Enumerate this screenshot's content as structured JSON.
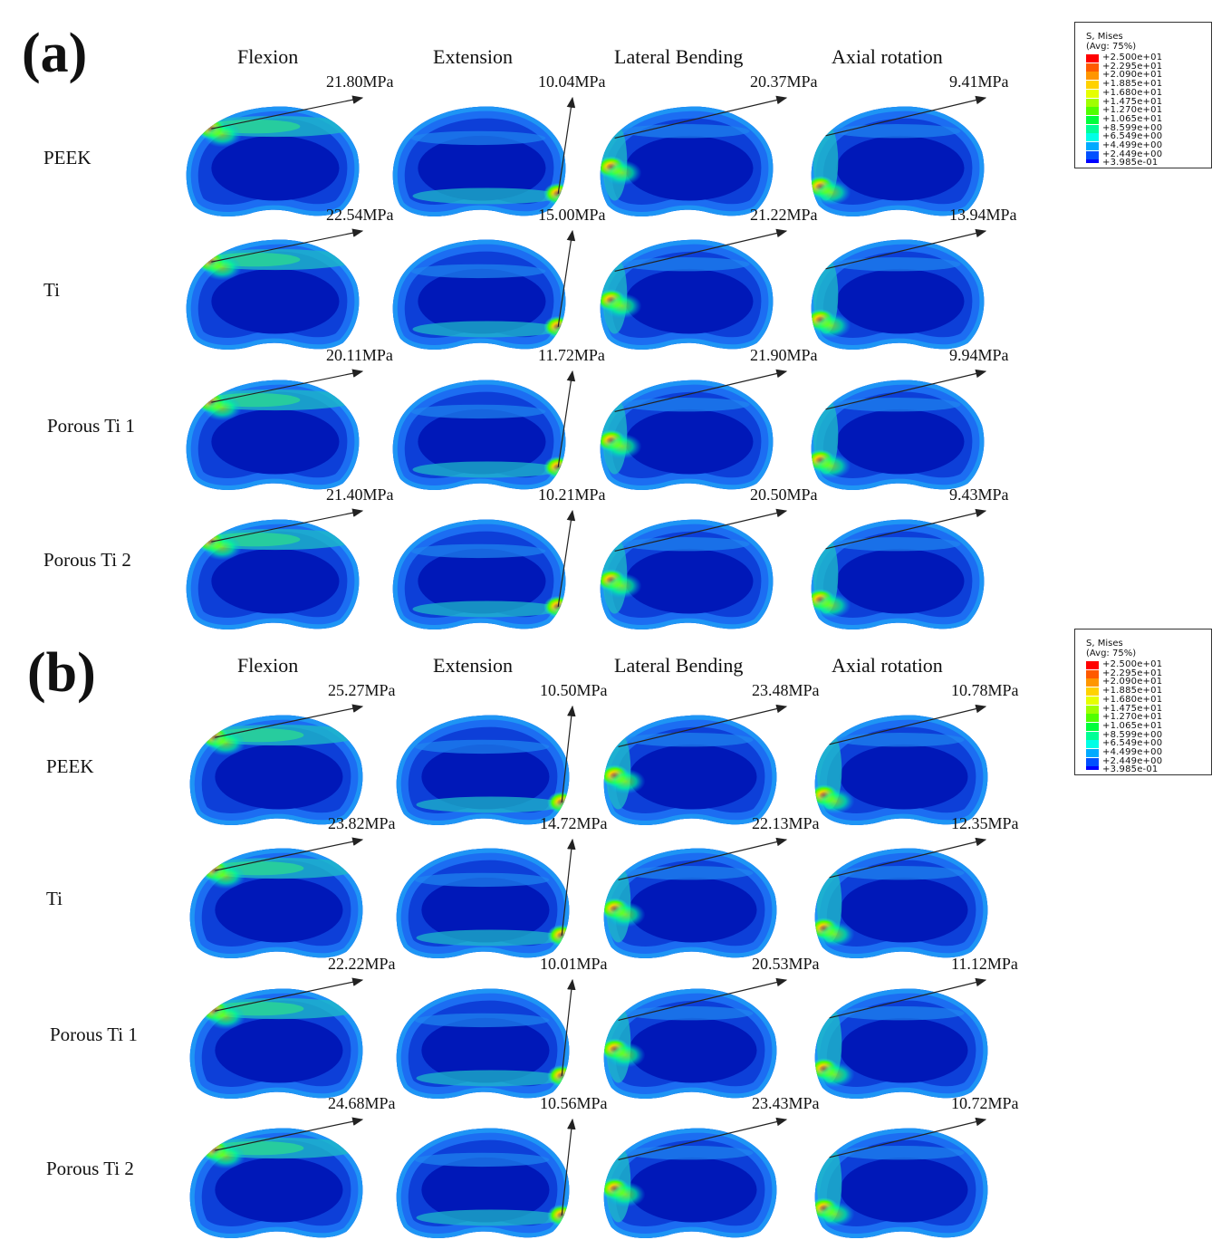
{
  "figure": {
    "panels": [
      {
        "label": "(a)",
        "columns": [
          "Flexion",
          "Extension",
          "Lateral Bending",
          "Axial rotation"
        ],
        "rows": [
          {
            "name": "PEEK",
            "values": [
              "21.80MPa",
              "10.04MPa",
              "20.37MPa",
              "9.41MPa"
            ]
          },
          {
            "name": "Ti",
            "values": [
              "22.54MPa",
              "15.00MPa",
              "21.22MPa",
              "13.94MPa"
            ]
          },
          {
            "name": "Porous Ti 1",
            "values": [
              "20.11MPa",
              "11.72MPa",
              "21.90MPa",
              "9.94MPa"
            ]
          },
          {
            "name": "Porous Ti 2",
            "values": [
              "21.40MPa",
              "10.21MPa",
              "20.50MPa",
              "9.43MPa"
            ]
          }
        ]
      },
      {
        "label": "(b)",
        "columns": [
          "Flexion",
          "Extension",
          "Lateral Bending",
          "Axial rotation"
        ],
        "rows": [
          {
            "name": "PEEK",
            "values": [
              "25.27MPa",
              "10.50MPa",
              "23.48MPa",
              "10.78MPa"
            ]
          },
          {
            "name": "Ti",
            "values": [
              "23.82MPa",
              "14.72MPa",
              "22.13MPa",
              "12.35MPa"
            ]
          },
          {
            "name": "Porous Ti 1",
            "values": [
              "22.22MPa",
              "10.01MPa",
              "20.53MPa",
              "11.12MPa"
            ]
          },
          {
            "name": "Porous Ti 2",
            "values": [
              "24.68MPa",
              "10.56MPa",
              "23.43MPa",
              "10.72MPa"
            ]
          }
        ]
      }
    ],
    "legend": {
      "title": "S, Mises",
      "subtitle": "(Avg: 75%)",
      "levels": [
        "+2.500e+01",
        "+2.295e+01",
        "+2.090e+01",
        "+1.885e+01",
        "+1.680e+01",
        "+1.475e+01",
        "+1.270e+01",
        "+1.065e+01",
        "+8.599e+00",
        "+6.549e+00",
        "+4.499e+00",
        "+2.449e+00",
        "+3.985e-01"
      ],
      "colors": [
        "#ff0000",
        "#ff5a00",
        "#ff9600",
        "#ffd200",
        "#e6ff00",
        "#a0ff00",
        "#50ff00",
        "#00ff3c",
        "#00ff96",
        "#00ffe6",
        "#00aaff",
        "#0050ff",
        "#0000ff"
      ]
    }
  }
}
